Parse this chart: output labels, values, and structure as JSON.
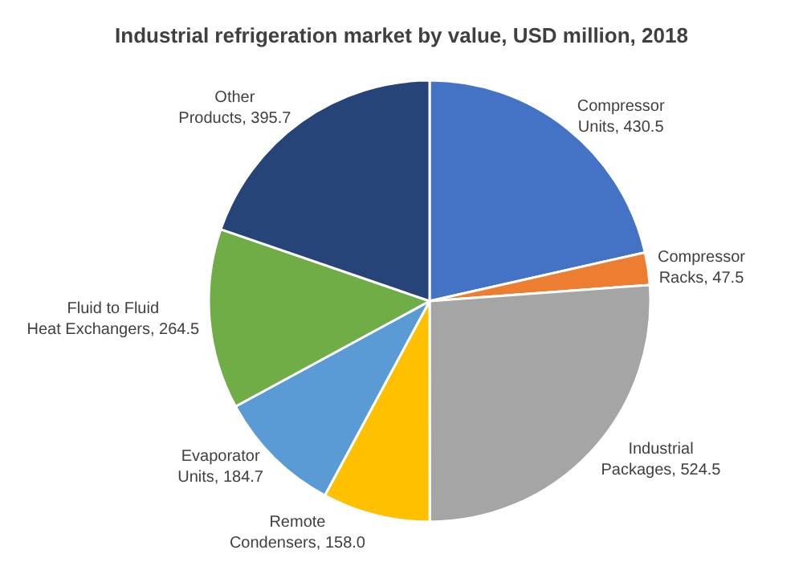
{
  "chart_data": {
    "type": "pie",
    "title": "Industrial refrigeration market by value, USD million, 2018",
    "categories": [
      "Compressor Units",
      "Compressor Racks",
      "Industrial Packages",
      "Remote Condensers",
      "Evaporator Units",
      "Fluid to Fluid Heat Exchangers",
      "Other Products"
    ],
    "values": [
      430.5,
      47.5,
      524.5,
      158.0,
      184.7,
      264.5,
      395.7
    ],
    "value_labels": [
      "430.5",
      "47.5",
      "524.5",
      "158.0",
      "184.7",
      "264.5",
      "395.7"
    ],
    "colors": [
      "#4472c4",
      "#ed7d31",
      "#a5a5a5",
      "#ffc000",
      "#5b9bd5",
      "#70ad47",
      "#264478"
    ],
    "legend": false
  }
}
